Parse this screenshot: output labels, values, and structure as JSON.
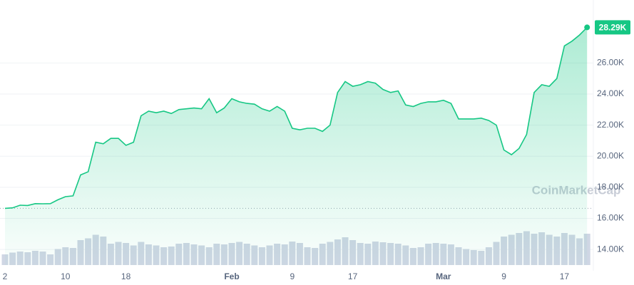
{
  "chart_data": {
    "type": "line",
    "categories": [
      "2",
      null,
      null,
      null,
      null,
      null,
      null,
      null,
      "10",
      null,
      null,
      null,
      null,
      null,
      null,
      null,
      "18",
      null,
      null,
      null,
      null,
      null,
      null,
      null,
      null,
      null,
      null,
      null,
      null,
      null,
      "Feb",
      null,
      null,
      null,
      null,
      null,
      null,
      null,
      "9",
      null,
      null,
      null,
      null,
      null,
      null,
      null,
      "17",
      null,
      null,
      null,
      null,
      null,
      null,
      null,
      null,
      null,
      null,
      null,
      "Mar",
      null,
      null,
      null,
      null,
      null,
      null,
      null,
      "9",
      null,
      null,
      null,
      null,
      null,
      null,
      null,
      "17",
      null,
      null,
      null
    ],
    "values": [
      16650,
      16680,
      16850,
      16830,
      16950,
      16940,
      16950,
      17200,
      17400,
      17450,
      18800,
      19000,
      20900,
      20800,
      21150,
      21150,
      20700,
      20900,
      22600,
      22900,
      22800,
      22900,
      22750,
      23000,
      23050,
      23100,
      23050,
      23700,
      22800,
      23100,
      23700,
      23500,
      23400,
      23350,
      23050,
      22900,
      23200,
      22900,
      21800,
      21700,
      21800,
      21800,
      21600,
      22000,
      24100,
      24800,
      24500,
      24600,
      24800,
      24700,
      24300,
      24100,
      24200,
      23300,
      23200,
      23400,
      23500,
      23500,
      23600,
      23400,
      22400,
      22400,
      22400,
      22450,
      22300,
      22000,
      20400,
      20100,
      20500,
      21400,
      24100,
      24600,
      24500,
      25000,
      27100,
      27400,
      27800,
      28290
    ],
    "color": "#16c784",
    "volume": [
      30,
      35,
      38,
      36,
      40,
      38,
      30,
      45,
      50,
      48,
      70,
      75,
      85,
      80,
      60,
      65,
      62,
      55,
      65,
      58,
      55,
      50,
      52,
      60,
      62,
      58,
      55,
      50,
      60,
      58,
      62,
      65,
      60,
      55,
      50,
      55,
      60,
      58,
      66,
      62,
      50,
      48,
      60,
      65,
      72,
      78,
      70,
      62,
      60,
      66,
      64,
      62,
      60,
      55,
      48,
      50,
      60,
      62,
      60,
      58,
      50,
      45,
      42,
      40,
      50,
      65,
      80,
      85,
      90,
      95,
      88,
      92,
      85,
      80,
      90,
      85,
      75,
      88
    ],
    "volume_color": "#cfd6e4",
    "vlim": [
      0,
      100
    ],
    "ylim": [
      13000,
      29500
    ],
    "yticks": [
      {
        "value": 14000,
        "label": "14.00K"
      },
      {
        "value": 16000,
        "label": "16.00K"
      },
      {
        "value": 18000,
        "label": "18.00K"
      },
      {
        "value": 20000,
        "label": "20.00K"
      },
      {
        "value": 22000,
        "label": "22.00K"
      },
      {
        "value": 24000,
        "label": "24.00K"
      },
      {
        "value": 26000,
        "label": "26.00K"
      }
    ],
    "current_price": {
      "value": 28290,
      "label": "28.29K"
    },
    "watermark": "CoinMarketCap",
    "grid": true
  }
}
